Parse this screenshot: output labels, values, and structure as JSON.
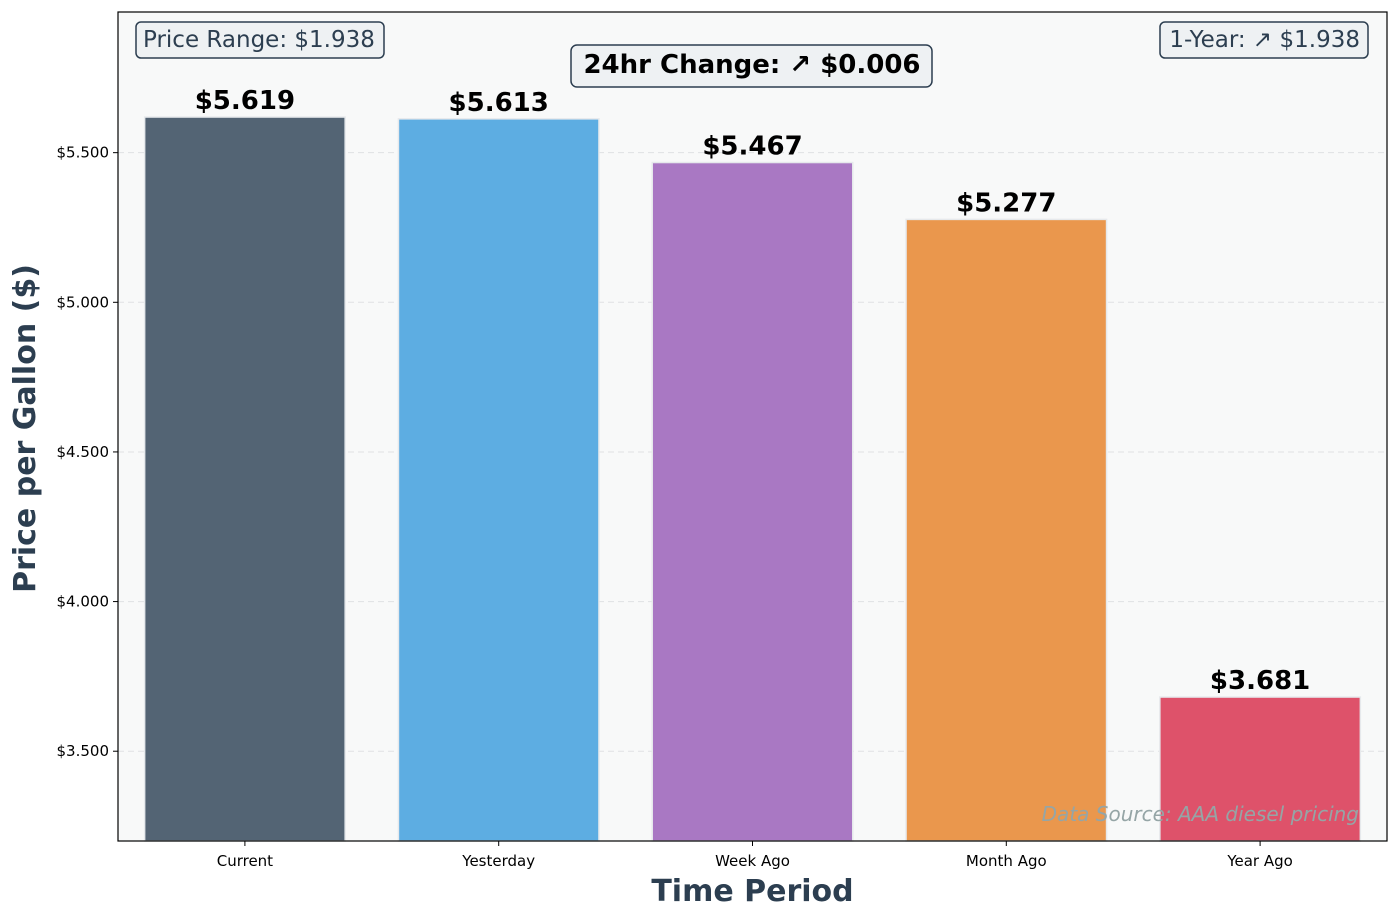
{
  "chart_data": {
    "type": "bar",
    "categories": [
      "Current",
      "Yesterday",
      "Week Ago",
      "Month Ago",
      "Year Ago"
    ],
    "values": [
      5.619,
      5.613,
      5.467,
      5.277,
      3.681
    ],
    "value_labels": [
      "$5.619",
      "$5.613",
      "$5.467",
      "$5.277",
      "$3.681"
    ],
    "colors": [
      "#536474",
      "#5dade2",
      "#a978c3",
      "#ea974d",
      "#de526a"
    ],
    "xlabel": "Time Period",
    "ylabel": "Price per Gallon ($)",
    "ylim": [
      3.2,
      5.97
    ],
    "yticks": [
      3.5,
      4.0,
      4.5,
      5.0,
      5.5
    ],
    "ytick_labels": [
      "$3.500",
      "$4.000",
      "$4.500",
      "$5.000",
      "$5.500"
    ],
    "grid": "y-dashed",
    "annotations": {
      "price_range": "Price Range: $1.938",
      "one_year": "1-Year: ↗ $1.938",
      "change_24hr": "24hr Change: ↗ $0.006",
      "source": "Data Source: AAA diesel pricing"
    }
  }
}
